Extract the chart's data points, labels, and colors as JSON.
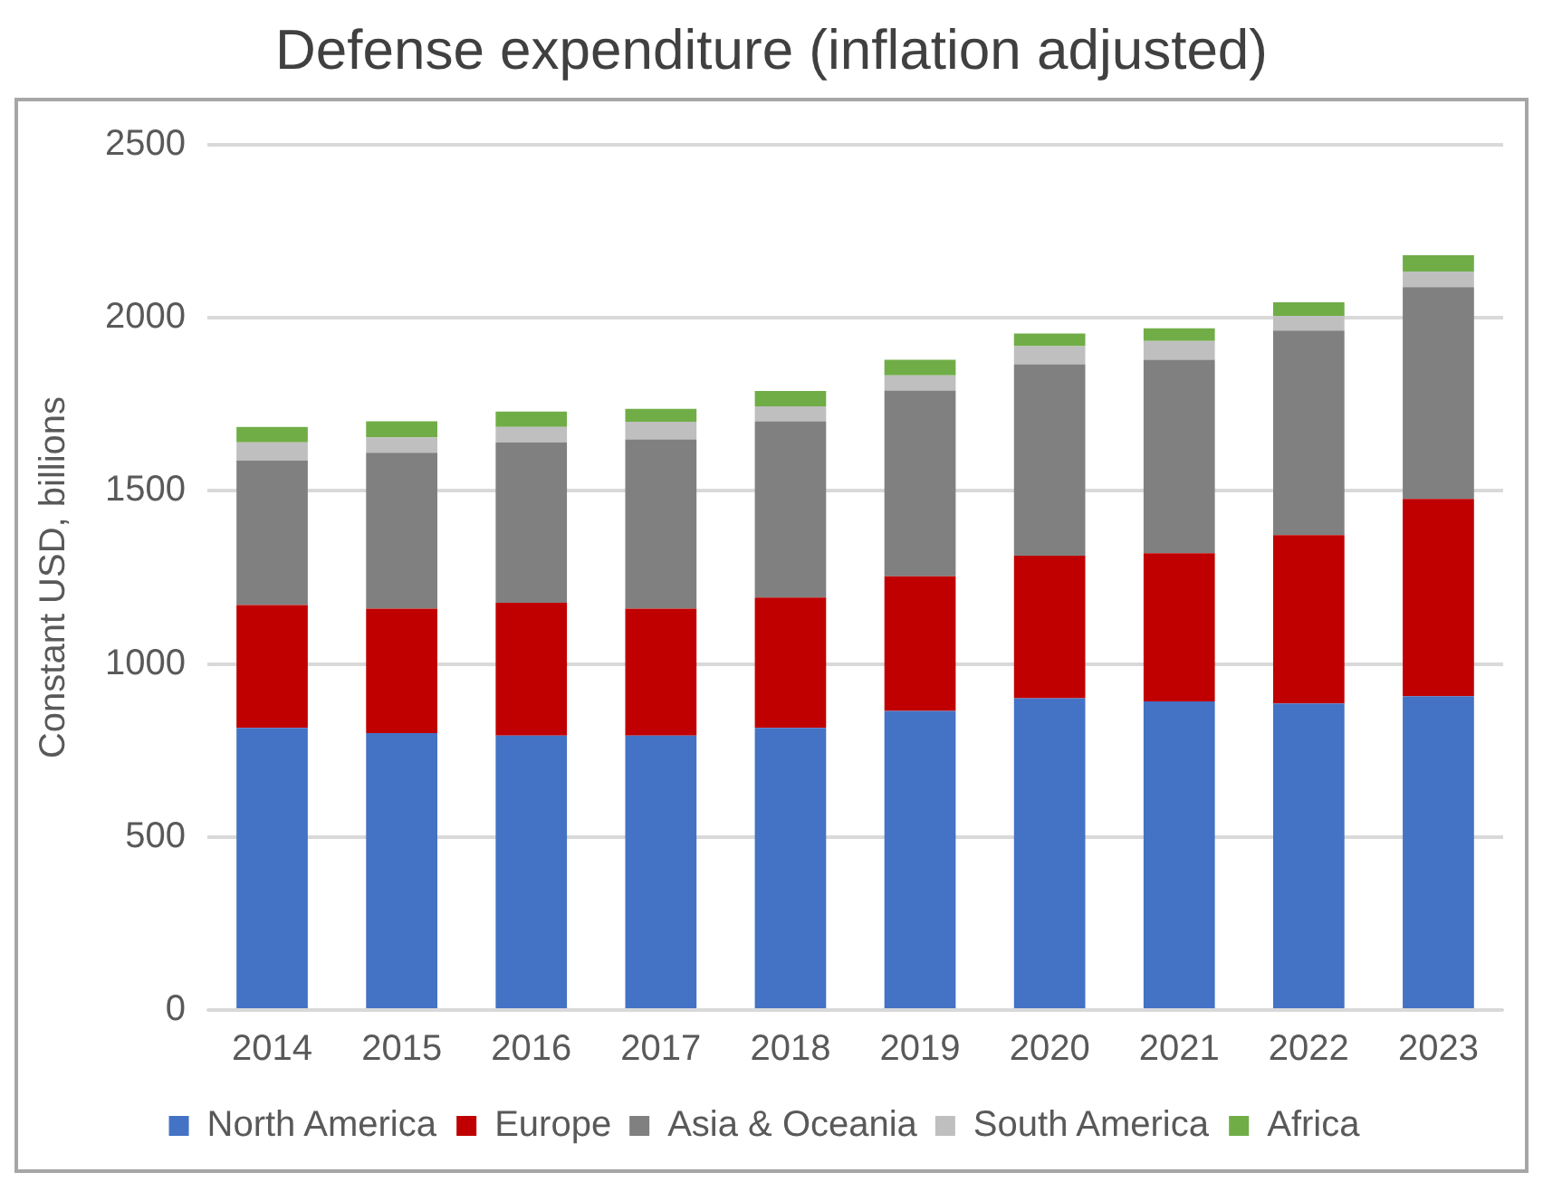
{
  "chart_data": {
    "type": "bar",
    "title": "Defense expenditure (inflation adjusted)",
    "ylabel": "Constant USD, billions",
    "categories": [
      "2014",
      "2015",
      "2016",
      "2017",
      "2018",
      "2019",
      "2020",
      "2021",
      "2022",
      "2023"
    ],
    "series": [
      {
        "name": "North America",
        "color": "#4472c4",
        "values": [
          815,
          800,
          793,
          793,
          815,
          864,
          901,
          892,
          886,
          907
        ]
      },
      {
        "name": "Europe",
        "color": "#c00000",
        "values": [
          355,
          360,
          384,
          367,
          377,
          389,
          412,
          428,
          486,
          570
        ]
      },
      {
        "name": "Asia & Oceania",
        "color": "#808080",
        "values": [
          418,
          450,
          463,
          489,
          509,
          537,
          553,
          559,
          591,
          612
        ]
      },
      {
        "name": "South America",
        "color": "#bfbfbf",
        "values": [
          52,
          45,
          45,
          51,
          43,
          44,
          52,
          54,
          43,
          45
        ]
      },
      {
        "name": "Africa",
        "color": "#70ad47",
        "values": [
          45,
          46,
          44,
          37,
          45,
          45,
          37,
          37,
          39,
          47
        ]
      }
    ],
    "stacked": true,
    "ylim": [
      0,
      2500
    ],
    "yticks": [
      0,
      500,
      1000,
      1500,
      2000,
      2500
    ],
    "grid": "y",
    "legend": "bottom"
  }
}
